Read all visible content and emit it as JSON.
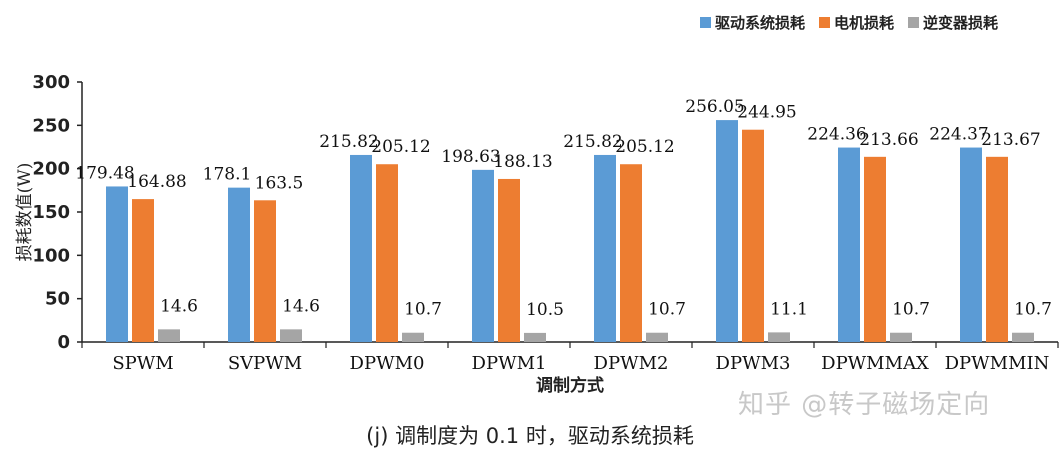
{
  "watermark": "知乎 @转子磁场定向",
  "caption": "(j) 调制度为 0.1 时，驱动系统损耗",
  "colors": {
    "series1": "#5B9BD5",
    "series2": "#ED7D31",
    "series3": "#A5A5A5",
    "axis": "#222222"
  },
  "chart_data": {
    "type": "bar",
    "title": "",
    "xlabel": "调制方式",
    "ylabel": "损耗数值(W)",
    "ylim": [
      0,
      300
    ],
    "yticks": [
      0,
      50,
      100,
      150,
      200,
      250,
      300
    ],
    "grid": false,
    "legend_position": "top-right",
    "categories": [
      "SPWM",
      "SVPWM",
      "DPWM0",
      "DPWM1",
      "DPWM2",
      "DPWM3",
      "DPWMMAX",
      "DPWMMIN"
    ],
    "series": [
      {
        "name": "驱动系统损耗",
        "values": [
          179.48,
          178.1,
          215.82,
          198.63,
          215.82,
          256.05,
          224.36,
          224.37
        ],
        "labels": [
          "179.48",
          "178.1",
          "215.82",
          "198.63",
          "215.82",
          "256.05",
          "224.36",
          "224.37"
        ]
      },
      {
        "name": "电机损耗",
        "values": [
          164.88,
          163.5,
          205.12,
          188.13,
          205.12,
          244.95,
          213.66,
          213.67
        ],
        "labels": [
          "164.88",
          "163.5",
          "205.12",
          "188.13",
          "205.12",
          "244.95",
          "213.66",
          "213.67"
        ]
      },
      {
        "name": "逆变器损耗",
        "values": [
          14.6,
          14.6,
          10.7,
          10.5,
          10.7,
          11.1,
          10.7,
          10.7
        ],
        "labels": [
          "14.6",
          "14.6",
          "10.7",
          "10.5",
          "10.7",
          "11.1",
          "10.7",
          "10.7"
        ]
      }
    ]
  }
}
